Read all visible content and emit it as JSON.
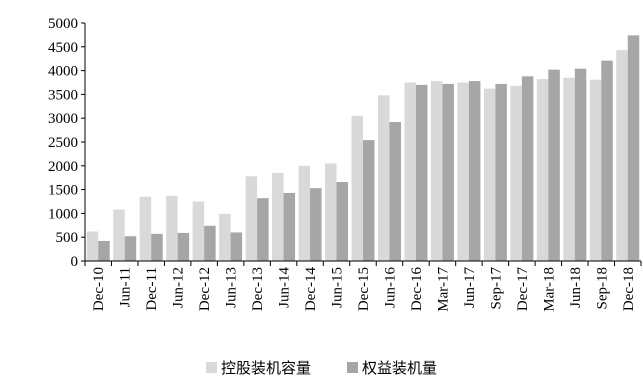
{
  "chart_data": {
    "type": "bar",
    "categories": [
      "Dec-10",
      "Jun-11",
      "Dec-11",
      "Jun-12",
      "Dec-12",
      "Jun-13",
      "Dec-13",
      "Jun-14",
      "Dec-14",
      "Jun-15",
      "Dec-15",
      "Jun-16",
      "Dec-16",
      "Mar-17",
      "Jun-17",
      "Sep-17",
      "Dec-17",
      "Mar-18",
      "Jun-18",
      "Sep-18",
      "Dec-18"
    ],
    "series": [
      {
        "name": "控股装机容量",
        "color": "#d9d9d9",
        "values": [
          620,
          1080,
          1350,
          1370,
          1250,
          990,
          1780,
          1850,
          2000,
          2050,
          3050,
          3480,
          3750,
          3780,
          3750,
          3620,
          3680,
          3820,
          3850,
          3810,
          4430
        ]
      },
      {
        "name": "权益装机量",
        "color": "#a6a6a6",
        "values": [
          420,
          520,
          570,
          590,
          740,
          600,
          1320,
          1430,
          1530,
          1660,
          2540,
          2920,
          3700,
          3720,
          3780,
          3720,
          3880,
          4020,
          4040,
          4210,
          4740
        ]
      }
    ],
    "yticks": [
      0,
      500,
      1000,
      1500,
      2000,
      2500,
      3000,
      3500,
      4000,
      4500,
      5000
    ],
    "ylim": [
      0,
      5000
    ],
    "title": "",
    "xlabel": "",
    "ylabel": "",
    "legend_position": "bottom"
  }
}
